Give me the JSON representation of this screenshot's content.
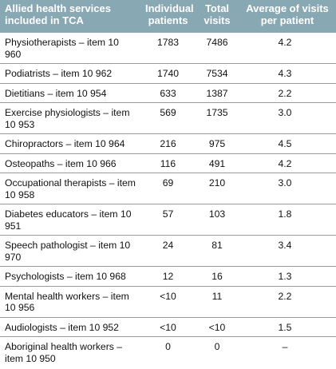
{
  "table": {
    "headers": [
      "Allied health services included in TCA",
      "Individual patients",
      "Total visits",
      "Average of visits per patient"
    ],
    "rows": [
      {
        "service": "Physiotherapists – item 10 960",
        "patients": "1783",
        "visits": "7486",
        "average": "4.2"
      },
      {
        "service": "Podiatrists – item 10 962",
        "patients": "1740",
        "visits": "7534",
        "average": "4.3"
      },
      {
        "service": "Dietitians – item 10 954",
        "patients": "633",
        "visits": "1387",
        "average": "2.2"
      },
      {
        "service": "Exercise physiologists – item 10 953",
        "patients": "569",
        "visits": "1735",
        "average": "3.0"
      },
      {
        "service": "Chiropractors – item 10 964",
        "patients": "216",
        "visits": "975",
        "average": "4.5"
      },
      {
        "service": "Osteopaths – item 10 966",
        "patients": "116",
        "visits": "491",
        "average": "4.2"
      },
      {
        "service": "Occupational therapists – item 10 958",
        "patients": "69",
        "visits": "210",
        "average": "3.0"
      },
      {
        "service": "Diabetes educators – item 10 951",
        "patients": "57",
        "visits": "103",
        "average": "1.8"
      },
      {
        "service": "Speech pathologist – item 10 970",
        "patients": "24",
        "visits": "81",
        "average": "3.4"
      },
      {
        "service": "Psychologists – item 10 968",
        "patients": "12",
        "visits": "16",
        "average": "1.3"
      },
      {
        "service": "Mental health workers – item 10 956",
        "patients": "<10",
        "visits": "11",
        "average": "2.2"
      },
      {
        "service": "Audiologists – item 10 952",
        "patients": "<10",
        "visits": "<10",
        "average": "1.5"
      },
      {
        "service": "Aboriginal health workers – item 10 950",
        "patients": "0",
        "visits": "0",
        "average": "–"
      }
    ]
  }
}
